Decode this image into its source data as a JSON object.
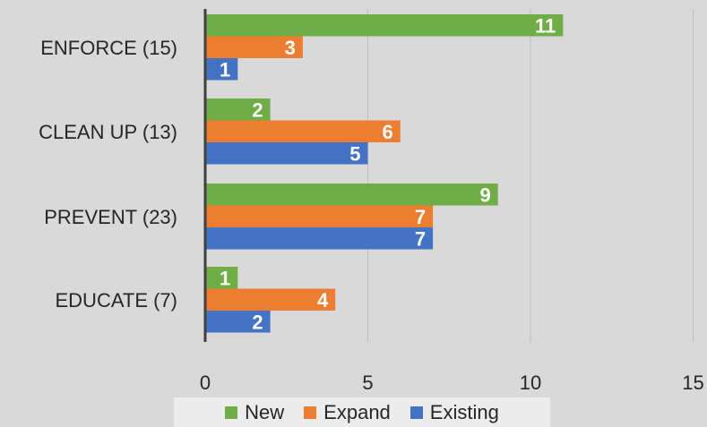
{
  "chart_data": {
    "type": "bar",
    "orientation": "horizontal",
    "categories": [
      "ENFORCE (15)",
      "CLEAN UP (13)",
      "PREVENT (23)",
      "EDUCATE (7)"
    ],
    "series": [
      {
        "name": "New",
        "color": "#70ad47",
        "values": [
          11,
          2,
          9,
          1
        ]
      },
      {
        "name": "Expand",
        "color": "#ed7d31",
        "values": [
          3,
          6,
          7,
          4
        ]
      },
      {
        "name": "Existing",
        "color": "#4472c4",
        "values": [
          1,
          5,
          7,
          2
        ]
      }
    ],
    "xticks": [
      "0",
      "5",
      "10",
      "15"
    ],
    "xlim": [
      0,
      15
    ],
    "grid": true,
    "legend_position": "bottom",
    "data_labels": true
  }
}
